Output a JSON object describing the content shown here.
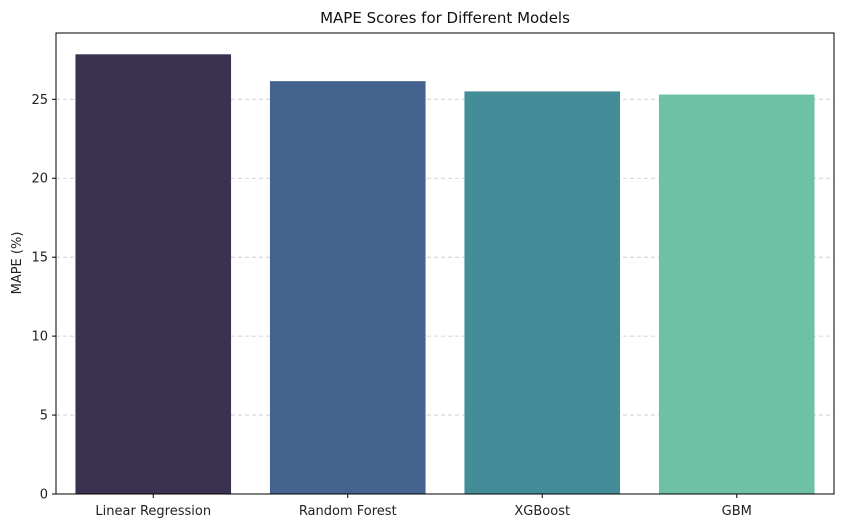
{
  "chart_data": {
    "type": "bar",
    "title": "MAPE Scores for Different Models",
    "xlabel": "",
    "ylabel": "MAPE (%)",
    "categories": [
      "Linear Regression",
      "Random Forest",
      "XGBoost",
      "GBM"
    ],
    "values": [
      27.85,
      26.15,
      25.5,
      25.3
    ],
    "colors": [
      "#3b3150",
      "#45638f",
      "#448c98",
      "#6fc1a5"
    ],
    "ylim": [
      0,
      29.2
    ],
    "yticks": [
      0,
      5,
      10,
      15,
      20,
      25
    ],
    "grid": {
      "axis": "y",
      "style": "dashed",
      "color": "#c8c8c8"
    }
  }
}
